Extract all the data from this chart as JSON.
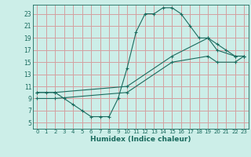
{
  "xlabel": "Humidex (Indice chaleur)",
  "bg_color": "#cceee8",
  "grid_color": "#d4a0a0",
  "line_color": "#1a6b5e",
  "xlim": [
    -0.5,
    23.5
  ],
  "ylim": [
    4,
    24.5
  ],
  "xticks": [
    0,
    1,
    2,
    3,
    4,
    5,
    6,
    7,
    8,
    9,
    10,
    11,
    12,
    13,
    14,
    15,
    16,
    17,
    18,
    19,
    20,
    21,
    22,
    23
  ],
  "yticks": [
    5,
    7,
    9,
    11,
    13,
    15,
    17,
    19,
    21,
    23
  ],
  "curve1_x": [
    0,
    1,
    2,
    3,
    4,
    5,
    6,
    7,
    8,
    9,
    10,
    11,
    12,
    13,
    14,
    15,
    16,
    17,
    18,
    19,
    20,
    21,
    22,
    23
  ],
  "curve1_y": [
    10,
    10,
    10,
    9,
    8,
    7,
    6,
    6,
    6,
    9,
    14,
    20,
    23,
    23,
    24,
    24,
    23,
    21,
    19,
    19,
    18,
    17,
    16,
    16
  ],
  "curve2_x": [
    0,
    2,
    10,
    15,
    19,
    20,
    22,
    23
  ],
  "curve2_y": [
    10,
    10,
    11,
    16,
    19,
    17,
    16,
    16
  ],
  "curve3_x": [
    0,
    2,
    10,
    15,
    19,
    20,
    22,
    23
  ],
  "curve3_y": [
    9,
    9,
    10,
    15,
    16,
    15,
    15,
    16
  ]
}
